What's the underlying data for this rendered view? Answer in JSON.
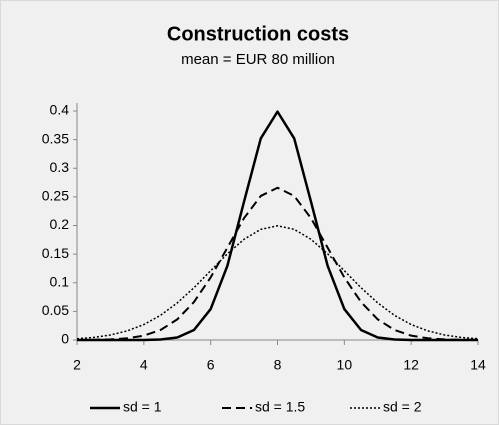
{
  "chart_data": {
    "type": "line",
    "title": "Construction costs",
    "subtitle": "mean = EUR 80 million",
    "x": [
      2,
      2.5,
      3,
      3.5,
      4,
      4.5,
      5,
      5.5,
      6,
      6.5,
      7,
      7.5,
      8,
      8.5,
      9,
      9.5,
      10,
      10.5,
      11,
      11.5,
      12,
      12.5,
      13,
      13.5,
      14
    ],
    "series": [
      {
        "name": "sd = 1",
        "color": "#000000",
        "style": "solid",
        "values": [
          0,
          0,
          0,
          0,
          0.0001,
          0.0009,
          0.0044,
          0.0175,
          0.054,
          0.1295,
          0.242,
          0.3521,
          0.3989,
          0.3521,
          0.242,
          0.1295,
          0.054,
          0.0175,
          0.0044,
          0.0009,
          0.0001,
          0,
          0,
          0,
          0
        ]
      },
      {
        "name": "sd = 1.5",
        "color": "#000000",
        "style": "dashed",
        "values": [
          0.0001,
          0.0003,
          0.001,
          0.003,
          0.0076,
          0.0175,
          0.036,
          0.0663,
          0.1093,
          0.1613,
          0.213,
          0.2516,
          0.266,
          0.2516,
          0.213,
          0.1613,
          0.1093,
          0.0663,
          0.036,
          0.0175,
          0.0076,
          0.003,
          0.001,
          0.0003,
          0.0001
        ]
      },
      {
        "name": "sd = 2",
        "color": "#000000",
        "style": "dotted",
        "values": [
          0.0022,
          0.0045,
          0.0088,
          0.0159,
          0.027,
          0.0431,
          0.0648,
          0.0913,
          0.121,
          0.1506,
          0.176,
          0.1933,
          0.1995,
          0.1933,
          0.176,
          0.1506,
          0.121,
          0.0913,
          0.0648,
          0.0431,
          0.027,
          0.0159,
          0.0088,
          0.0045,
          0.0022
        ]
      }
    ],
    "xlim": [
      2,
      14
    ],
    "xticks": [
      2,
      4,
      6,
      8,
      10,
      12,
      14
    ],
    "ylim": [
      0,
      0.4
    ],
    "yticks": [
      0,
      0.05,
      0.1,
      0.15,
      0.2,
      0.25,
      0.3,
      0.35,
      0.4
    ],
    "grid": false,
    "legend": "bottom"
  }
}
